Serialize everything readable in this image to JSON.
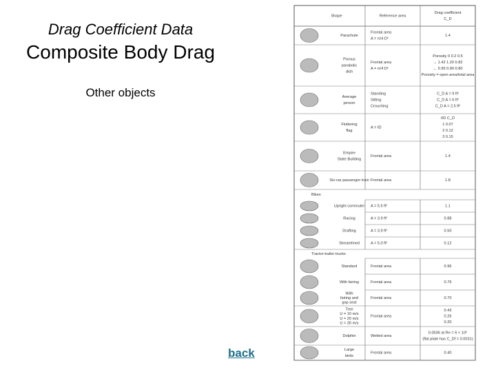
{
  "header": {
    "subtitle": "Drag Coefficient Data",
    "title": "Composite Body Drag",
    "section": "Other objects"
  },
  "table": {
    "header": [
      [
        "Shape"
      ],
      [
        "Reference area"
      ],
      [
        "Drag coefficient",
        "C_D"
      ]
    ],
    "rows": [
      {
        "shape": [
          "Parachute"
        ],
        "ref": [
          "Frontal area",
          "A = π/4 D²"
        ],
        "cd": [
          "1.4"
        ]
      },
      {
        "shape": [
          "Porous",
          "parabolic",
          "dish"
        ],
        "ref": [
          "Frontal area",
          "A = π/4 D²"
        ],
        "cd": [
          "Porosity   0    0.2    0.5",
          "→   1.42   1.20   0.82",
          "←   0.95   0.90   0.80",
          "Porosity = open area/total area"
        ]
      },
      {
        "shape": [
          "Average",
          "person"
        ],
        "ref": [
          "Standing",
          "Sitting",
          "Crouching"
        ],
        "cd": [
          "C_D A = 9 ft²",
          "C_D A = 6 ft²",
          "C_D A = 2.5 ft²"
        ]
      },
      {
        "shape": [
          "Fluttering",
          "flag"
        ],
        "ref": [
          "A = ℓD"
        ],
        "cd": [
          "ℓ/D    C_D",
          "1    0.07",
          "2    0.12",
          "3    0.15"
        ]
      },
      {
        "shape": [
          "Empire",
          "State Building"
        ],
        "ref": [
          "Frontal area"
        ],
        "cd": [
          "1.4"
        ]
      },
      {
        "shape": [
          "Six-car passenger train"
        ],
        "ref": [
          "Frontal area"
        ],
        "cd": [
          "1.8"
        ]
      },
      {
        "shape": [
          "Bikes"
        ],
        "ref": [],
        "cd": []
      },
      {
        "shape": [
          "Upright commuter"
        ],
        "ref": [
          "A = 5.5 ft²"
        ],
        "cd": [
          "1.1"
        ]
      },
      {
        "shape": [
          "Racing"
        ],
        "ref": [
          "A = 3.9 ft²"
        ],
        "cd": [
          "0.88"
        ]
      },
      {
        "shape": [
          "Drafting"
        ],
        "ref": [
          "A = 3.9 ft²"
        ],
        "cd": [
          "0.50"
        ]
      },
      {
        "shape": [
          "Streamlined"
        ],
        "ref": [
          "A = 5.0 ft²"
        ],
        "cd": [
          "0.12"
        ]
      },
      {
        "shape": [
          "Tractor-trailer trucks"
        ],
        "ref": [],
        "cd": []
      },
      {
        "shape": [
          "Standard"
        ],
        "ref": [
          "Frontal area"
        ],
        "cd": [
          "0.96"
        ]
      },
      {
        "shape": [
          "With fairing"
        ],
        "ref": [
          "Frontal area"
        ],
        "cd": [
          "0.76"
        ]
      },
      {
        "shape": [
          "With",
          "fairing and",
          "gap seal"
        ],
        "ref": [
          "Frontal area"
        ],
        "cd": [
          "0.70"
        ]
      },
      {
        "shape": [
          "Tree",
          "U = 10 m/s",
          "U = 20 m/s",
          "U = 30 m/s"
        ],
        "ref": [
          "Frontal area"
        ],
        "cd": [
          "0.43",
          "0.26",
          "0.20"
        ]
      },
      {
        "shape": [
          "Dolphin"
        ],
        "ref": [
          "Wetted area"
        ],
        "cd": [
          "0.0036 at Re = 6 × 10⁶",
          "(flat plate has C_Df = 0.0031)"
        ]
      },
      {
        "shape": [
          "Large",
          "birds"
        ],
        "ref": [
          "Frontal area"
        ],
        "cd": [
          "0.40"
        ]
      }
    ]
  },
  "nav": {
    "back": "back"
  }
}
